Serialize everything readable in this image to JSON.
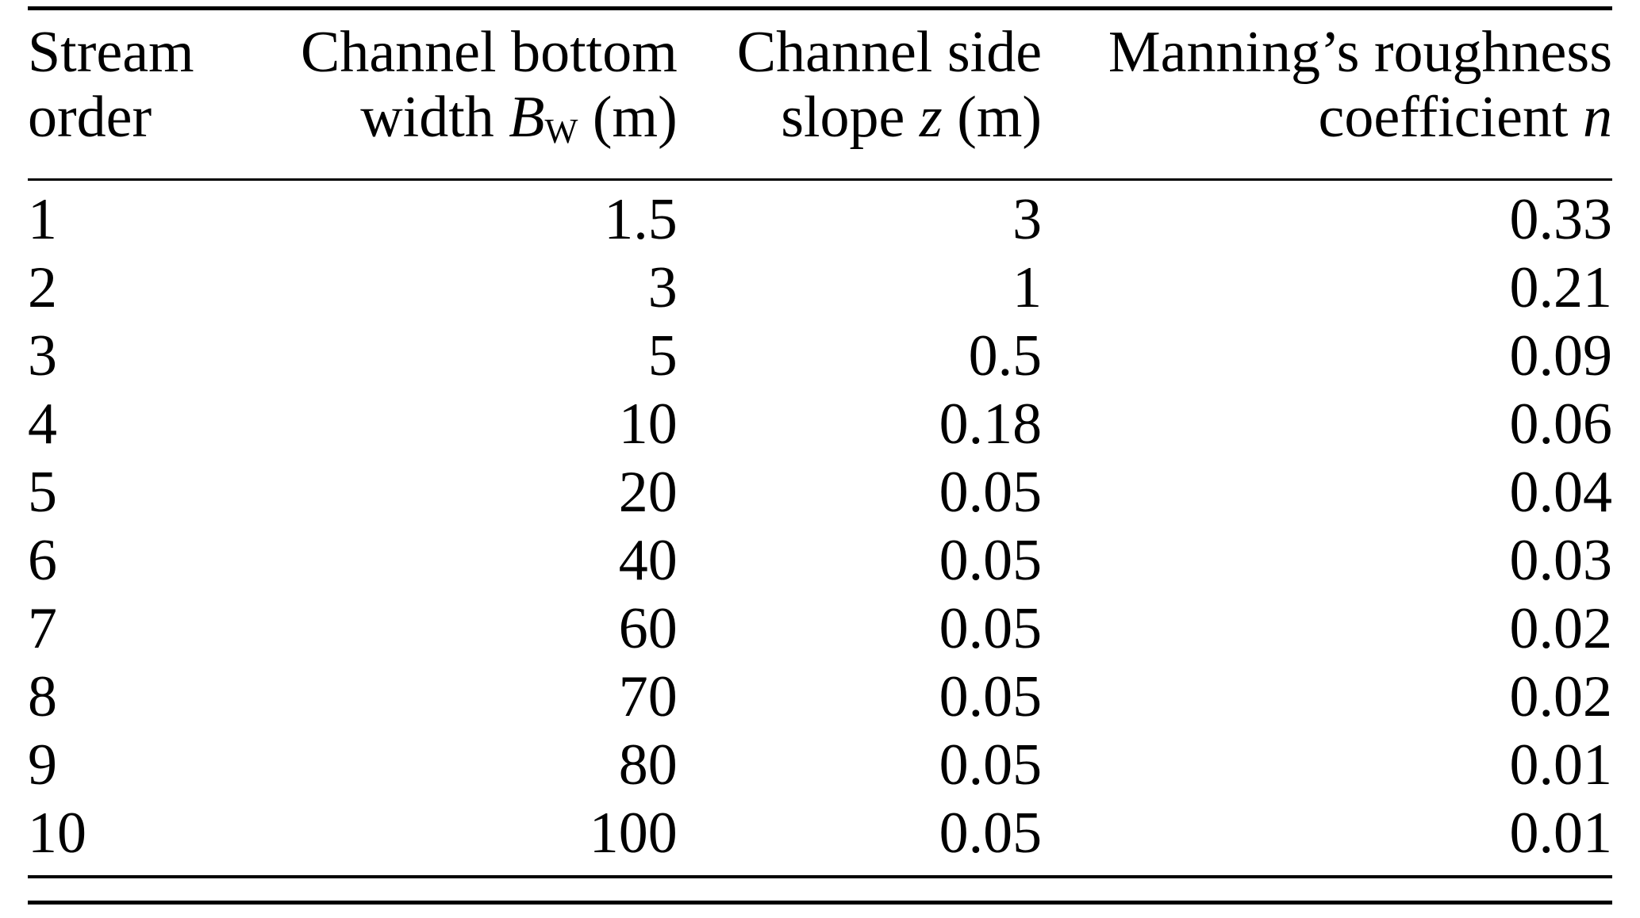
{
  "page": {
    "background": "#ffffff",
    "text_color": "#000000",
    "rule_color": "#000000"
  },
  "table": {
    "headers": {
      "stream": {
        "line1": "Stream",
        "line2": "order"
      },
      "width": {
        "line1": "Channel bottom",
        "line2_pre": "width ",
        "symbol": "B",
        "subscript": "W",
        "line2_post": " (m)"
      },
      "slope": {
        "line1": "Channel side",
        "line2_pre": "slope ",
        "symbol": "z",
        "line2_post": " (m)"
      },
      "manning": {
        "line1": "Manning’s roughness",
        "line2_pre": "coefficient ",
        "symbol": "n"
      }
    },
    "rows": [
      {
        "order": "1",
        "width": "1.5",
        "slope": "3",
        "n": "0.33"
      },
      {
        "order": "2",
        "width": "3",
        "slope": "1",
        "n": "0.21"
      },
      {
        "order": "3",
        "width": "5",
        "slope": "0.5",
        "n": "0.09"
      },
      {
        "order": "4",
        "width": "10",
        "slope": "0.18",
        "n": "0.06"
      },
      {
        "order": "5",
        "width": "20",
        "slope": "0.05",
        "n": "0.04"
      },
      {
        "order": "6",
        "width": "40",
        "slope": "0.05",
        "n": "0.03"
      },
      {
        "order": "7",
        "width": "60",
        "slope": "0.05",
        "n": "0.02"
      },
      {
        "order": "8",
        "width": "70",
        "slope": "0.05",
        "n": "0.02"
      },
      {
        "order": "9",
        "width": "80",
        "slope": "0.05",
        "n": "0.01"
      },
      {
        "order": "10",
        "width": "100",
        "slope": "0.05",
        "n": "0.01"
      }
    ]
  }
}
